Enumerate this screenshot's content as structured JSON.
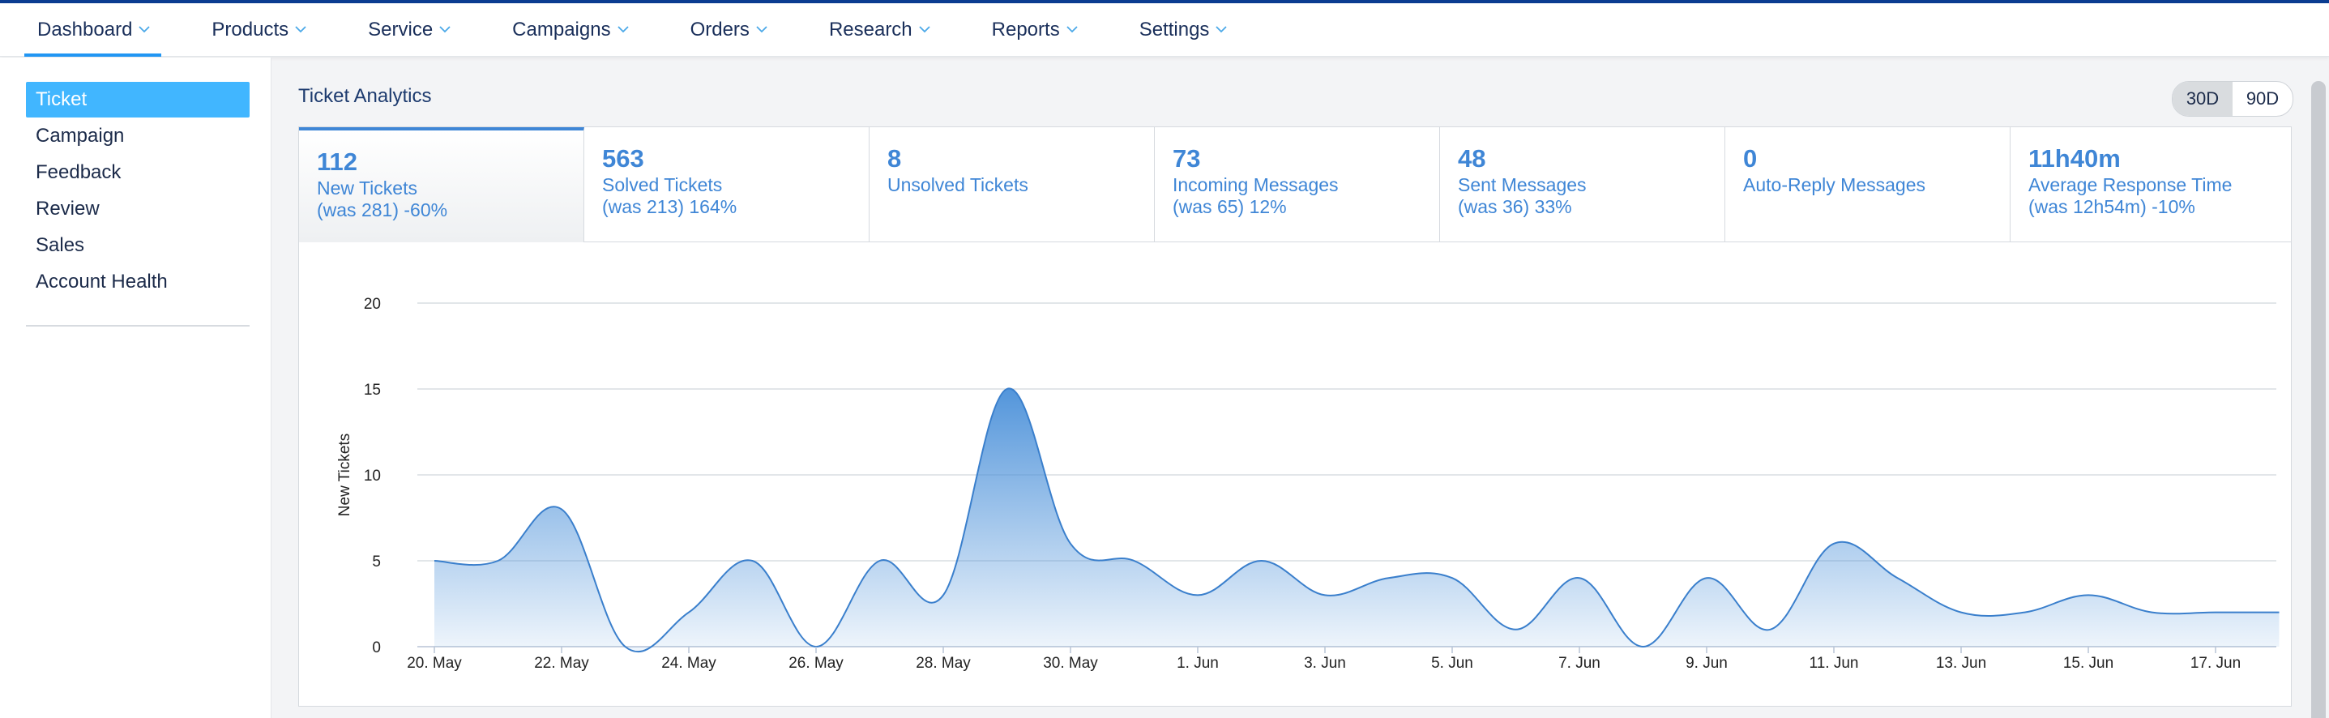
{
  "nav": {
    "items": [
      {
        "label": "Dashboard",
        "name": "nav-dashboard",
        "active": true
      },
      {
        "label": "Products",
        "name": "nav-products"
      },
      {
        "label": "Service",
        "name": "nav-service"
      },
      {
        "label": "Campaigns",
        "name": "nav-campaigns"
      },
      {
        "label": "Orders",
        "name": "nav-orders"
      },
      {
        "label": "Research",
        "name": "nav-research"
      },
      {
        "label": "Reports",
        "name": "nav-reports"
      },
      {
        "label": "Settings",
        "name": "nav-settings"
      }
    ]
  },
  "sidebar": {
    "items": [
      {
        "label": "Ticket",
        "active": true
      },
      {
        "label": "Campaign"
      },
      {
        "label": "Feedback"
      },
      {
        "label": "Review"
      },
      {
        "label": "Sales"
      },
      {
        "label": "Account Health"
      }
    ]
  },
  "main": {
    "title": "Ticket Analytics",
    "range": {
      "options": [
        "30D",
        "90D"
      ],
      "selected": "30D"
    },
    "stats": [
      {
        "value": "112",
        "label": "New Tickets",
        "sub": "(was 281) -60%",
        "active": true
      },
      {
        "value": "563",
        "label": "Solved Tickets",
        "sub": "(was 213) 164%"
      },
      {
        "value": "8",
        "label": "Unsolved Tickets",
        "sub": ""
      },
      {
        "value": "73",
        "label": "Incoming Messages",
        "sub": "(was 65) 12%"
      },
      {
        "value": "48",
        "label": "Sent Messages",
        "sub": "(was 36) 33%"
      },
      {
        "value": "0",
        "label": "Auto-Reply Messages",
        "sub": ""
      },
      {
        "value": "11h40m",
        "label": "Average Response Time",
        "sub": "(was 12h54m) -10%"
      }
    ]
  },
  "colors": {
    "accent": "#3f86d6",
    "nav_underline": "#2196f3",
    "sidebar_active": "#41b6ff",
    "series": "#4a90d9"
  },
  "chart_data": {
    "type": "area",
    "ylabel": "New Tickets",
    "xlabel": "",
    "ylim": [
      0,
      20
    ],
    "yticks": [
      0,
      5,
      10,
      15,
      20
    ],
    "xtick_labels": [
      "20. May",
      "22. May",
      "24. May",
      "26. May",
      "28. May",
      "30. May",
      "1. Jun",
      "3. Jun",
      "5. Jun",
      "7. Jun",
      "9. Jun",
      "11. Jun",
      "13. Jun",
      "15. Jun",
      "17. Jun"
    ],
    "x": [
      "20. May",
      "21. May",
      "22. May",
      "23. May",
      "24. May",
      "25. May",
      "26. May",
      "27. May",
      "28. May",
      "29. May",
      "30. May",
      "31. May",
      "1. Jun",
      "2. Jun",
      "3. Jun",
      "4. Jun",
      "5. Jun",
      "6. Jun",
      "7. Jun",
      "8. Jun",
      "9. Jun",
      "10. Jun",
      "11. Jun",
      "12. Jun",
      "13. Jun",
      "14. Jun",
      "15. Jun",
      "16. Jun",
      "17. Jun",
      "18. Jun"
    ],
    "values": [
      5,
      5,
      8,
      0,
      2,
      5,
      0,
      5,
      3,
      15,
      6,
      5,
      3,
      5,
      3,
      4,
      4,
      1,
      4,
      0,
      4,
      1,
      6,
      4,
      2,
      2,
      3,
      2,
      2,
      2
    ],
    "grid": true,
    "legend": "none"
  }
}
